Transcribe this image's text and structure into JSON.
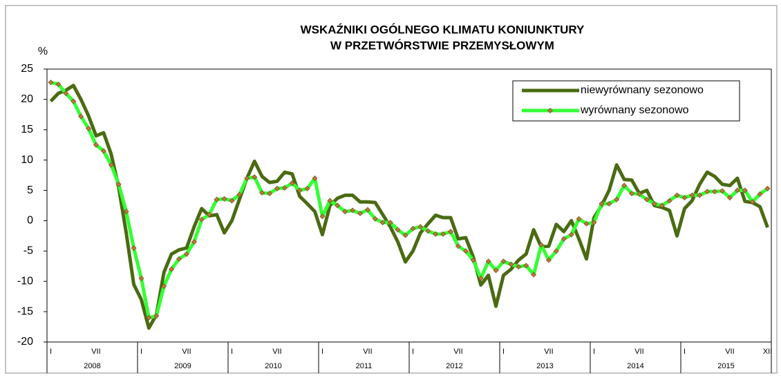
{
  "chart_data": {
    "type": "line",
    "title": [
      "WSKAŹNIKI OGÓLNEGO KLIMATU KONIUNKTURY",
      "W PRZETWÓRSTWIE PRZEMYSŁOWYM"
    ],
    "y_label": "%",
    "categories": [
      "I",
      null,
      null,
      null,
      null,
      null,
      "VII",
      null,
      null,
      null,
      null,
      null,
      "I",
      null,
      null,
      null,
      null,
      null,
      "VII",
      null,
      null,
      null,
      null,
      null,
      "I",
      null,
      null,
      null,
      null,
      null,
      "VII",
      null,
      null,
      null,
      null,
      null,
      "I",
      null,
      null,
      null,
      null,
      null,
      "VII",
      null,
      null,
      null,
      null,
      null,
      "I",
      null,
      null,
      null,
      null,
      null,
      "VII",
      null,
      null,
      null,
      null,
      null,
      "I",
      null,
      null,
      null,
      null,
      null,
      "VII",
      null,
      null,
      null,
      null,
      null,
      "I",
      null,
      null,
      null,
      null,
      null,
      "VII",
      null,
      null,
      null,
      null,
      null,
      "I",
      null,
      null,
      null,
      null,
      null,
      "VII",
      null,
      null,
      null,
      null,
      "XII"
    ],
    "year_labels": [
      "2008",
      "2009",
      "2010",
      "2011",
      "2012",
      "2013",
      "2014",
      "2015"
    ],
    "series": [
      {
        "name": "niewyrównany sezonowo",
        "color": "#4a6b12",
        "markers": false,
        "values": [
          19.7,
          21,
          21.5,
          22.3,
          20,
          17.3,
          14,
          14.5,
          11,
          5.5,
          -2,
          -10.5,
          -13,
          -17.7,
          -15.5,
          -8.5,
          -5.5,
          -4.8,
          -4.5,
          -1,
          2,
          0.8,
          1,
          -2,
          0,
          3.5,
          7,
          9.8,
          7.3,
          6.3,
          6.5,
          8,
          7.7,
          4,
          2.8,
          1.5,
          -2.3,
          2.5,
          3.7,
          4.2,
          4.2,
          3.1,
          3.1,
          3,
          1,
          -1,
          -3.5,
          -6.8,
          -5,
          -2,
          -0.5,
          0.9,
          0.5,
          0.5,
          -3,
          -2.8,
          -6,
          -10.6,
          -9,
          -14.1,
          -9,
          -8,
          -6.5,
          -5.5,
          -1.5,
          -4.3,
          -4.2,
          -0.6,
          -1.8,
          0,
          -3,
          -6.3,
          0.5,
          2.5,
          5,
          9.2,
          6.8,
          6.7,
          4.5,
          5,
          2.5,
          2.2,
          1.7,
          -2.5,
          2,
          3.3,
          6,
          8,
          7.3,
          6,
          5.8,
          7,
          3.2,
          3,
          2.3,
          -1.1
        ]
      },
      {
        "name": "wyrównany sezonowo",
        "color": "#33ff33",
        "markers": true,
        "marker_color": "#c0783a",
        "values": [
          22.8,
          22.5,
          21,
          19.7,
          17.2,
          15.2,
          12.5,
          11.5,
          9.2,
          6,
          1.5,
          -4.5,
          -9.5,
          -16,
          -15.7,
          -10.8,
          -8,
          -6.3,
          -5.5,
          -3.5,
          0.2,
          1,
          3.5,
          3.6,
          3.3,
          4.3,
          7,
          7.2,
          4.6,
          4.5,
          5.3,
          5.4,
          6.2,
          5,
          5.3,
          7,
          0.7,
          3.3,
          2.5,
          1.5,
          1.7,
          1.2,
          1.8,
          0.3,
          -0.3,
          -0.3,
          -1.5,
          -2.4,
          -1.3,
          -1,
          -1.7,
          -2.2,
          -2.2,
          -1.8,
          -4.2,
          -5,
          -6.5,
          -9.5,
          -6.7,
          -8.2,
          -6.7,
          -7.2,
          -7.6,
          -7.4,
          -8.9,
          -4,
          -6.5,
          -5,
          -3,
          -2.3,
          0.3,
          -0.5,
          -0.3,
          2.8,
          2.8,
          3.5,
          5.8,
          4.5,
          4.4,
          3.5,
          2.8,
          2.5,
          3.3,
          4.2,
          3.8,
          4.2,
          4.2,
          4.8,
          4.8,
          4.9,
          3.8,
          5,
          5,
          3.1,
          4.4,
          5.3
        ]
      }
    ],
    "ylim": [
      -20,
      25
    ],
    "yticks": [
      25,
      20,
      15,
      10,
      5,
      0,
      -5,
      -10,
      -15,
      -20
    ],
    "grid": false,
    "legend": "upper right"
  }
}
